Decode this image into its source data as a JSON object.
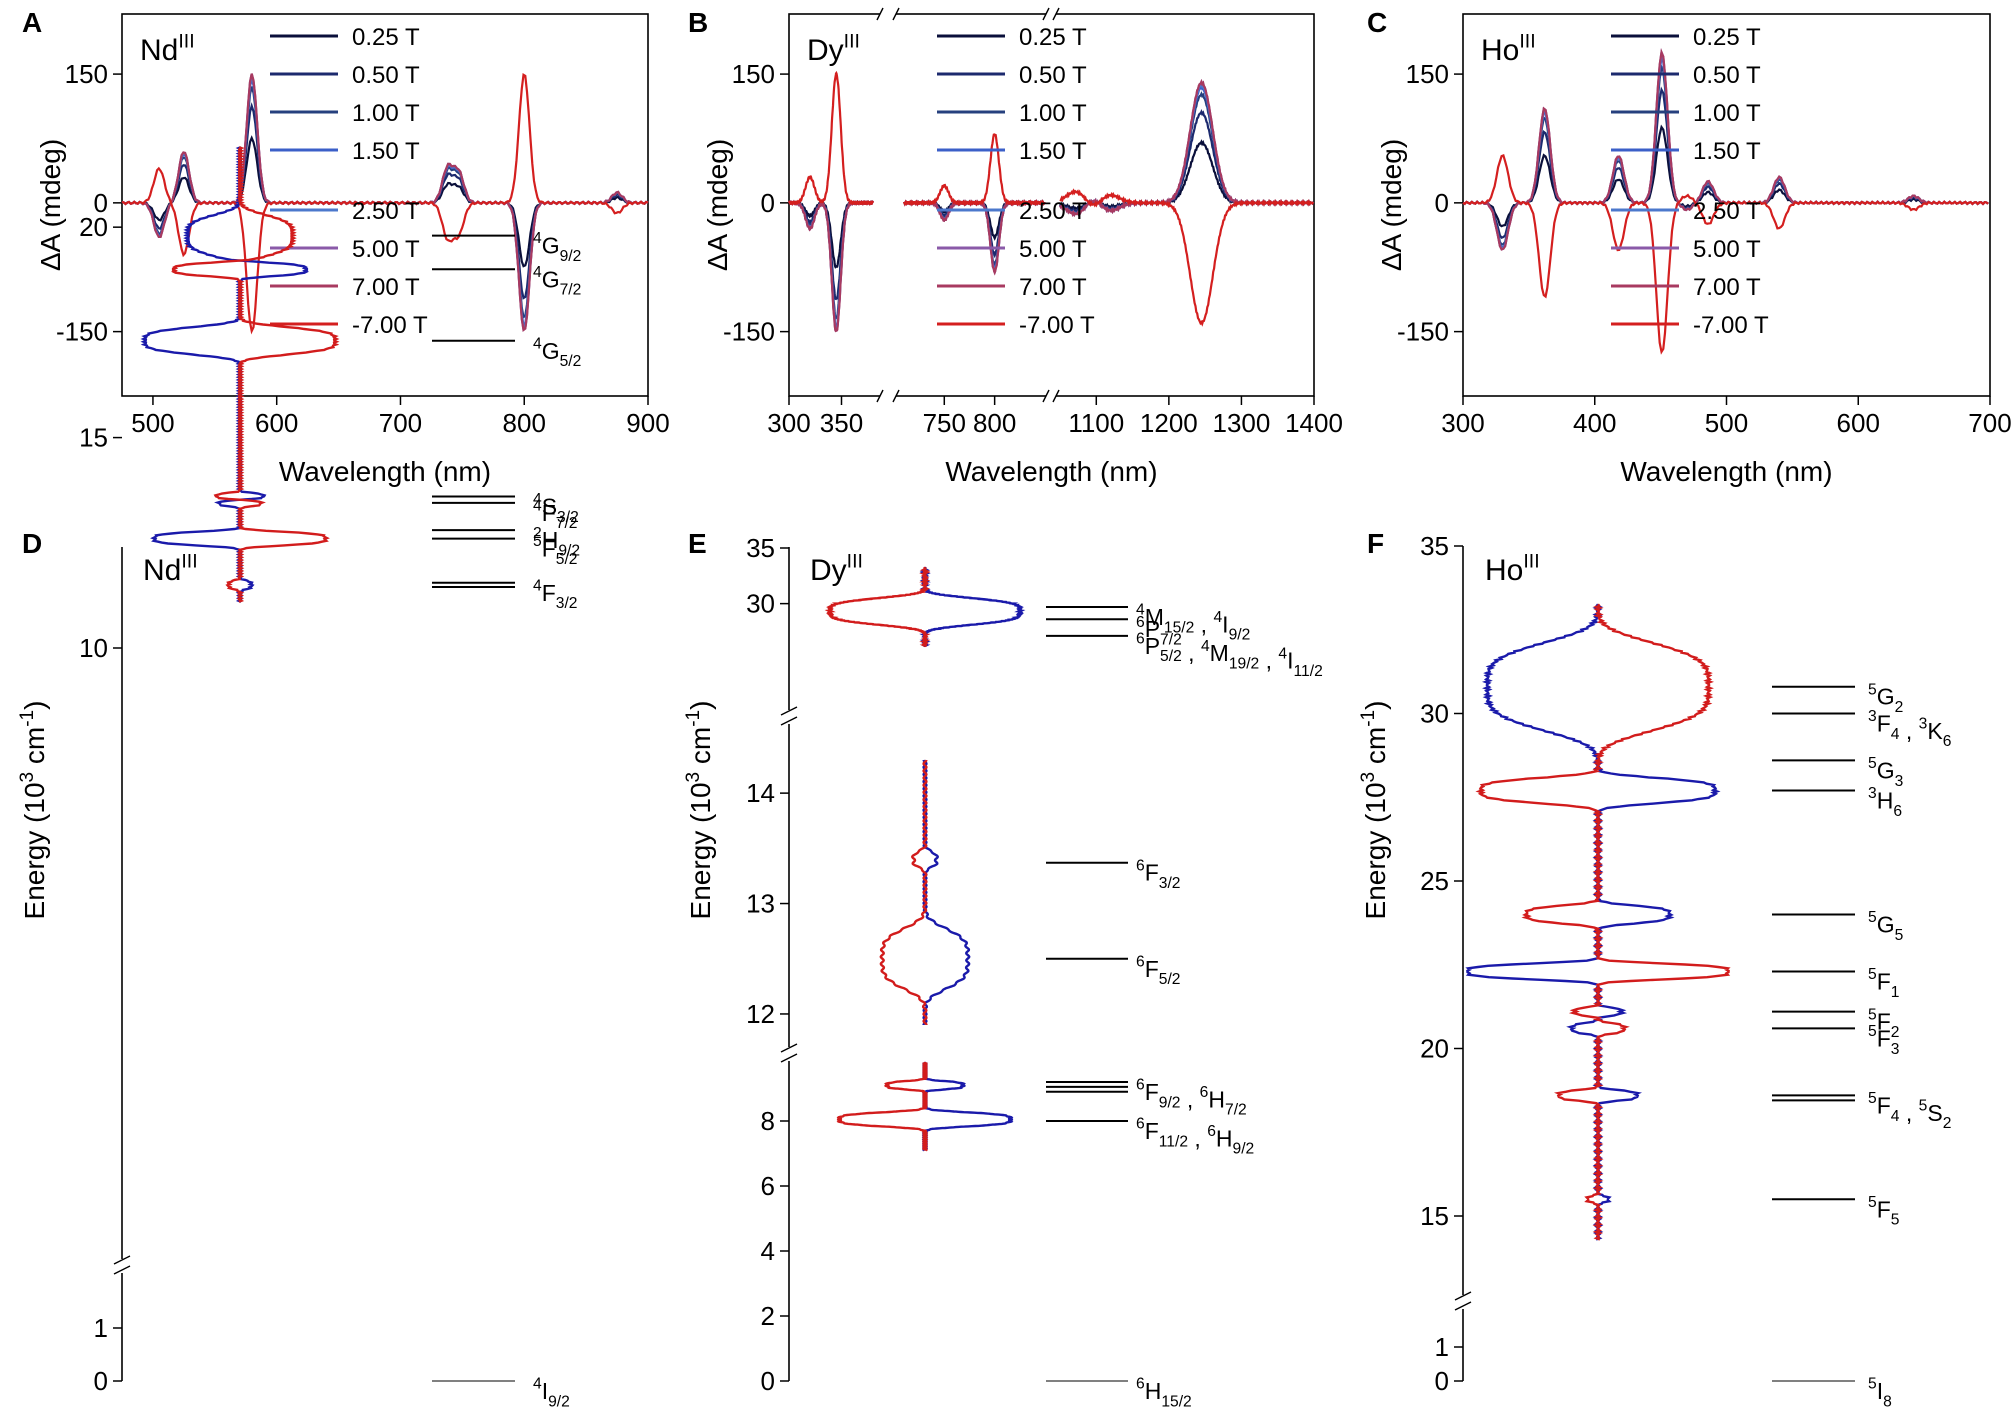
{
  "figure": {
    "panel_letters": [
      "A",
      "B",
      "C",
      "D",
      "E",
      "F"
    ],
    "legend": {
      "fields": [
        "0.25 T",
        "0.50 T",
        "1.00 T",
        "1.50 T",
        "2.50 T",
        "5.00 T",
        "7.00 T",
        "-7.00 T"
      ],
      "colors": [
        "#0a0f3a",
        "#1c2a6e",
        "#26407e",
        "#3b5fc8",
        "#4c78cc",
        "#8a5aa8",
        "#a83a60",
        "#d41f1f"
      ]
    }
  },
  "chart_data": [
    {
      "panel": "A",
      "type": "line",
      "ion": "Nd",
      "ion_superscript": "III",
      "xlabel": "Wavelength (nm)",
      "ylabel": "ΔA (mdeg)",
      "xlim": [
        475,
        900
      ],
      "ylim": [
        -225,
        220
      ],
      "xticks": [
        500,
        600,
        700,
        800,
        900
      ],
      "yticks": [
        -150,
        0,
        150
      ],
      "peaks": [
        [
          505,
          -40
        ],
        [
          525,
          60
        ],
        [
          535,
          0
        ],
        [
          580,
          150
        ],
        [
          738,
          40
        ],
        [
          747,
          35
        ],
        [
          800,
          -150
        ],
        [
          875,
          12
        ]
      ],
      "reverse_peak_x": [
        505
      ]
    },
    {
      "panel": "B",
      "type": "line",
      "ion": "Dy",
      "ion_superscript": "III",
      "xlabel": "Wavelength (nm)",
      "ylabel": "ΔA (mdeg)",
      "ylim": [
        -225,
        220
      ],
      "yticks": [
        -150,
        0,
        150
      ],
      "segments": [
        {
          "xlim": [
            300,
            380
          ],
          "xticks": [
            300,
            350
          ]
        },
        {
          "xlim": [
            710,
            850
          ],
          "xticks": [
            750,
            800
          ]
        },
        {
          "xlim": [
            1050,
            1400
          ],
          "xticks": [
            1100,
            1200,
            1300,
            1400
          ]
        }
      ],
      "peaks": [
        [
          345,
          -150
        ],
        [
          320,
          -30
        ],
        [
          750,
          -20
        ],
        [
          800,
          -80
        ],
        [
          1080,
          -25
        ],
        [
          1095,
          30
        ],
        [
          1110,
          -20
        ],
        [
          1245,
          140
        ]
      ]
    },
    {
      "panel": "C",
      "type": "line",
      "ion": "Ho",
      "ion_superscript": "III",
      "xlabel": "Wavelength (nm)",
      "ylabel": "ΔA (mdeg)",
      "xlim": [
        300,
        700
      ],
      "ylim": [
        -225,
        220
      ],
      "xticks": [
        300,
        400,
        500,
        600,
        700
      ],
      "yticks": [
        -150,
        0,
        150
      ],
      "peaks": [
        [
          330,
          -55
        ],
        [
          362,
          110
        ],
        [
          418,
          55
        ],
        [
          451,
          175
        ],
        [
          470,
          -8
        ],
        [
          486,
          25
        ],
        [
          540,
          30
        ],
        [
          642,
          8
        ]
      ]
    },
    {
      "panel": "D",
      "type": "line",
      "ion": "Nd",
      "ion_superscript": "III",
      "ylabel": "Energy (10",
      "ylabel_sup": "3",
      "ylabel_unit": " cm",
      "ylabel_unit_sup": "-1",
      "ylabel_close": ")",
      "yticks_upper": [
        10,
        15,
        20
      ],
      "yticks_lower": [
        0,
        1
      ],
      "levels": [
        {
          "e": 19.8,
          "label": [
            [
              "4",
              "G",
              "9/2"
            ]
          ]
        },
        {
          "e": 19.0,
          "label": [
            [
              "4",
              "G",
              "7/2"
            ]
          ]
        },
        {
          "e": 17.3,
          "label": [
            [
              "4",
              "G",
              "5/2"
            ]
          ]
        },
        {
          "e": 13.6,
          "label": [
            [
              "4",
              "S",
              "3/2"
            ]
          ]
        },
        {
          "e": 13.45,
          "label": [
            [
              "4",
              "F",
              "7/2"
            ]
          ]
        },
        {
          "e": 12.8,
          "label": [
            [
              "2",
              "H",
              "9/2"
            ]
          ]
        },
        {
          "e": 12.6,
          "label": [
            [
              "5",
              "F",
              "5/2"
            ]
          ]
        },
        {
          "e": 11.55,
          "label": [
            [
              "4",
              "F",
              "3/2"
            ]
          ]
        },
        {
          "e": 11.45,
          "label": []
        },
        {
          "e": 0,
          "label": [
            [
              "4",
              "I",
              "9/2"
            ]
          ]
        }
      ],
      "profile": [
        [
          19.8,
          -0.4
        ],
        [
          19.0,
          0.6
        ],
        [
          17.3,
          -1.0
        ],
        [
          13.6,
          0.2
        ],
        [
          13.45,
          -0.2
        ],
        [
          12.6,
          -0.8
        ],
        [
          11.5,
          0.15
        ]
      ]
    },
    {
      "panel": "E",
      "type": "line",
      "ion": "Dy",
      "ion_superscript": "III",
      "ylabel": "Energy (10",
      "ylabel_sup": "3",
      "ylabel_unit": " cm",
      "ylabel_unit_sup": "-1",
      "ylabel_close": ")",
      "yticks_top": [
        30,
        35
      ],
      "yticks_mid": [
        12,
        13,
        14
      ],
      "yticks_bottom": [
        0,
        2,
        4,
        6,
        8
      ],
      "levels": [
        {
          "e": 29.7,
          "seg": "top",
          "label": [
            [
              "4",
              "M",
              "15/2"
            ],
            [
              "4",
              "I",
              "9/2"
            ]
          ]
        },
        {
          "e": 28.6,
          "seg": "top",
          "label": [
            [
              "6",
              "P",
              "7/2"
            ]
          ]
        },
        {
          "e": 27.1,
          "seg": "top",
          "label": [
            [
              "6",
              "P",
              "5/2"
            ],
            [
              "4",
              "M",
              "19/2"
            ],
            [
              "4",
              "I",
              "11/2"
            ]
          ]
        },
        {
          "e": 13.37,
          "seg": "mid",
          "label": [
            [
              "6",
              "F",
              "3/2"
            ]
          ]
        },
        {
          "e": 12.5,
          "seg": "mid",
          "label": [
            [
              "6",
              "F",
              "5/2"
            ]
          ]
        },
        {
          "e": 9.2,
          "seg": "bottom",
          "label": [
            [
              "6",
              "F",
              "9/2"
            ],
            [
              "6",
              "H",
              "7/2"
            ]
          ]
        },
        {
          "e": 9.05,
          "seg": "bottom",
          "label": []
        },
        {
          "e": 8.9,
          "seg": "bottom",
          "label": []
        },
        {
          "e": 8.0,
          "seg": "bottom",
          "label": [
            [
              "6",
              "F",
              "11/2"
            ],
            [
              "6",
              "H",
              "9/2"
            ]
          ]
        },
        {
          "e": 0,
          "seg": "bottom",
          "label": [
            [
              "6",
              "H",
              "15/2"
            ]
          ]
        }
      ]
    },
    {
      "panel": "F",
      "type": "line",
      "ion": "Ho",
      "ion_superscript": "III",
      "ylabel": "Energy (10",
      "ylabel_sup": "3",
      "ylabel_unit": " cm",
      "ylabel_unit_sup": "-1",
      "ylabel_close": ")",
      "yticks_upper": [
        15,
        20,
        25,
        30,
        35
      ],
      "yticks_lower": [
        0,
        1
      ],
      "levels": [
        {
          "e": 30.8,
          "label": [
            [
              "5",
              "G",
              "2"
            ]
          ]
        },
        {
          "e": 30.0,
          "label": [
            [
              "3",
              "F",
              "4"
            ],
            [
              "3",
              "K",
              "6"
            ]
          ]
        },
        {
          "e": 28.6,
          "label": [
            [
              "5",
              "G",
              "3"
            ]
          ]
        },
        {
          "e": 27.7,
          "label": [
            [
              "3",
              "H",
              "6"
            ]
          ]
        },
        {
          "e": 24.0,
          "label": [
            [
              "5",
              "G",
              "5"
            ]
          ]
        },
        {
          "e": 22.3,
          "label": [
            [
              "5",
              "F",
              "1"
            ]
          ]
        },
        {
          "e": 21.1,
          "label": [
            [
              "5",
              "F",
              "2"
            ]
          ]
        },
        {
          "e": 20.6,
          "label": [
            [
              "5",
              "F",
              "3"
            ]
          ]
        },
        {
          "e": 18.6,
          "label": [
            [
              "5",
              "F",
              "4"
            ],
            [
              "5",
              "S",
              "2"
            ]
          ]
        },
        {
          "e": 18.45,
          "label": []
        },
        {
          "e": 15.5,
          "label": [
            [
              "5",
              "F",
              "5"
            ]
          ]
        },
        {
          "e": 0,
          "label": [
            [
              "5",
              "I",
              "8"
            ]
          ]
        }
      ]
    }
  ]
}
